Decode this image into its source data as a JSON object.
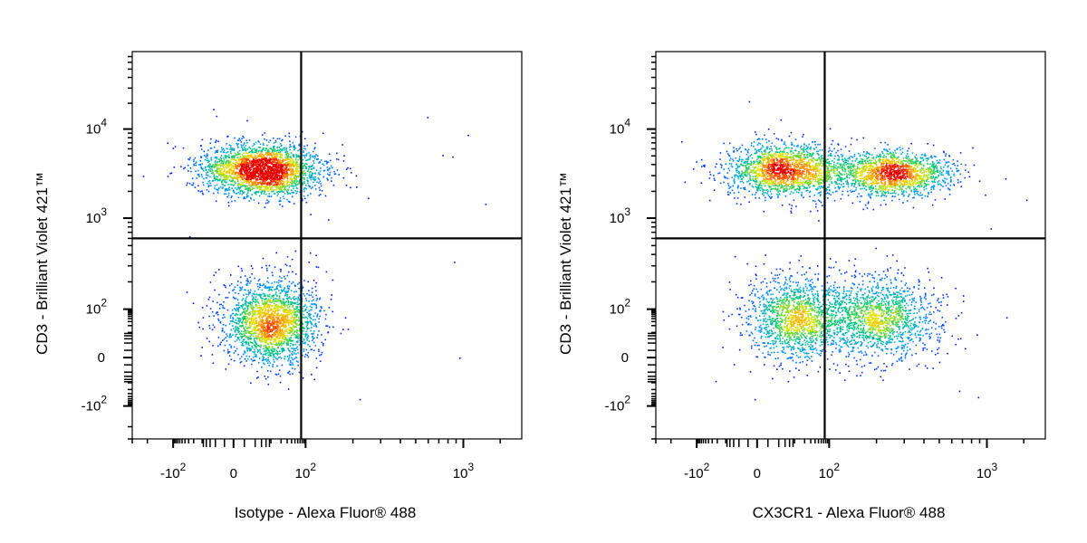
{
  "chart_data": [
    {
      "type": "scatter",
      "xlabel": "Isotype - Alexa Fluor® 488",
      "ylabel": "CD3 - Brilliant Violet 421™",
      "x_scale": "biexponential",
      "y_scale": "biexponential",
      "x_ticks": [
        {
          "value": -100,
          "label": "-10",
          "exp": "2"
        },
        {
          "value": 0,
          "label": "0",
          "exp": ""
        },
        {
          "value": 100,
          "label": "10",
          "exp": "2"
        },
        {
          "value": 1000,
          "label": "10",
          "exp": "3"
        }
      ],
      "y_ticks": [
        {
          "value": -100,
          "label": "-10",
          "exp": "2"
        },
        {
          "value": 0,
          "label": "0",
          "exp": ""
        },
        {
          "value": 100,
          "label": "10",
          "exp": "2"
        },
        {
          "value": 1000,
          "label": "10",
          "exp": "3"
        },
        {
          "value": 10000,
          "label": "10",
          "exp": "4"
        }
      ],
      "gate": {
        "x": 75,
        "y": 600
      },
      "populations": [
        {
          "name": "",
          "center": [
            5,
            3500
          ],
          "spread": [
            30,
            0.35
          ],
          "count": 2600
        },
        {
          "name": "",
          "center": [
            10,
            30
          ],
          "spread": [
            35,
            0.55
          ],
          "count": 2200
        }
      ],
      "density_coloring": "blue-green-yellow-red",
      "grid": false
    },
    {
      "type": "scatter",
      "xlabel": "CX3CR1 - Alexa Fluor® 488",
      "ylabel": "CD3 - Brilliant Violet 421™",
      "x_scale": "biexponential",
      "y_scale": "biexponential",
      "x_ticks": [
        {
          "value": -100,
          "label": "-10",
          "exp": "2"
        },
        {
          "value": 0,
          "label": "0",
          "exp": ""
        },
        {
          "value": 100,
          "label": "10",
          "exp": "2"
        },
        {
          "value": 1000,
          "label": "10",
          "exp": "3"
        }
      ],
      "y_ticks": [
        {
          "value": -100,
          "label": "-10",
          "exp": "2"
        },
        {
          "value": 0,
          "label": "0",
          "exp": ""
        },
        {
          "value": 100,
          "label": "10",
          "exp": "2"
        },
        {
          "value": 1000,
          "label": "10",
          "exp": "3"
        },
        {
          "value": 10000,
          "label": "10",
          "exp": "4"
        }
      ],
      "gate": {
        "x": 75,
        "y": 600
      },
      "populations": [
        {
          "name": "",
          "center": [
            5,
            3500
          ],
          "spread": [
            30,
            0.35
          ],
          "count": 1800
        },
        {
          "name": "",
          "center": [
            250,
            3200
          ],
          "spread": [
            0.45,
            0.3
          ],
          "count": 1600
        },
        {
          "name": "",
          "center": [
            10,
            40
          ],
          "spread": [
            35,
            0.55
          ],
          "count": 1400
        },
        {
          "name": "",
          "center": [
            200,
            40
          ],
          "spread": [
            0.45,
            0.55
          ],
          "count": 1500
        }
      ],
      "density_coloring": "blue-green-yellow-red",
      "grid": false
    }
  ]
}
